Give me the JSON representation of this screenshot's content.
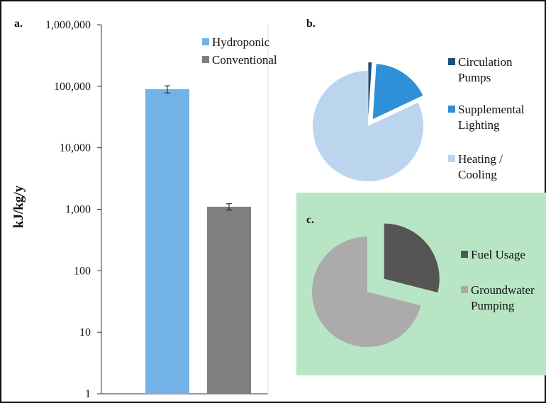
{
  "chart_data": [
    {
      "panel": "a.",
      "type": "bar",
      "ylabel": "kJ/kg/y",
      "yscale": "log",
      "ylim": [
        1,
        1000000
      ],
      "yticks": [
        "1",
        "10",
        "100",
        "1,000",
        "10,000",
        "100,000",
        "1,000,000"
      ],
      "legend": "top-right",
      "grid": false,
      "series": [
        {
          "name": "Hydroponic",
          "value": 90000,
          "error": 12000,
          "color": "#73b2e6"
        },
        {
          "name": "Conventional",
          "value": 1100,
          "error": 130,
          "color": "#7f7f7f"
        }
      ]
    },
    {
      "panel": "b.",
      "type": "pie",
      "legend": "right",
      "slices": [
        {
          "label": "Circulation\nPumps",
          "value": 1,
          "color": "#1f4e79",
          "exploded": true
        },
        {
          "label": "Supplemental\nLighting",
          "value": 17,
          "color": "#2f8fd8",
          "exploded": true
        },
        {
          "label": "Heating /\nCooling",
          "value": 82,
          "color": "#bcd5ee",
          "exploded": false
        }
      ]
    },
    {
      "panel": "c.",
      "type": "pie",
      "legend": "right",
      "background": "#b8e6c5",
      "slices": [
        {
          "label": "Fuel Usage",
          "value": 29,
          "color": "#555555",
          "exploded": true
        },
        {
          "label": "Groundwater\nPumping",
          "value": 71,
          "color": "#ababab",
          "exploded": false
        }
      ]
    }
  ]
}
